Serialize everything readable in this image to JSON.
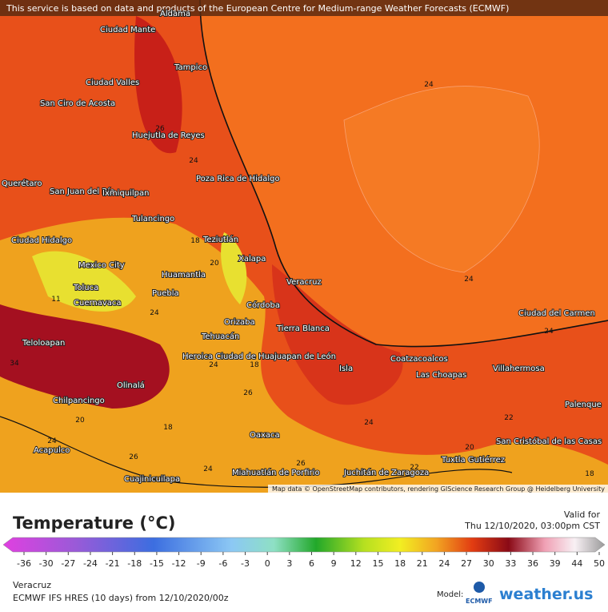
{
  "banner": "This service is based on data and products of the European Centre for Medium-range Weather Forecasts (ECMWF)",
  "attribution": "Map data © OpenStreetMap contributors, rendering GIScience Research Group @ Heidelberg University",
  "cities": [
    "Aldama",
    "Tampico",
    "Ciudad Mante",
    "Ciudad Valles",
    "San Ciro de Acosta",
    "Huejutla de Reyes",
    "Poza Rica de Hidalgo",
    "San Juan del Río",
    "Ixmiquilpan",
    "Querétaro",
    "Tulancingo",
    "Teziutlán",
    "Ciudad Hidalgo",
    "Xalapa",
    "Mexico City",
    "Huamantla",
    "Veracruz",
    "Toluca",
    "Cuernavaca",
    "Puebla",
    "Córdoba",
    "Orizaba",
    "Tierra Blanca",
    "Tehuacán",
    "Teloloapan",
    "Heroica Ciudad de Huajuapan de León",
    "Coatzacoalcos",
    "Isla",
    "Las Choapas",
    "Villahermosa",
    "Olinalá",
    "Chilpancingo",
    "Palenque",
    "Oaxaca",
    "San Cristóbal de las Casas",
    "Acapulco",
    "Tuxtla Gutiérrez",
    "Miahuatlán de Porfirio",
    "Juchitán de Zaragoza",
    "Cuajinicuilapa",
    "Ciudad del Carmen"
  ],
  "contour_labels": [
    24,
    24,
    24,
    26,
    24,
    18,
    20,
    24,
    18,
    24,
    34,
    11,
    24,
    22,
    20,
    26,
    22,
    18,
    18,
    20,
    24,
    26,
    24,
    26
  ],
  "legend": {
    "title": "Temperature (°C)",
    "ticks": [
      -36,
      -30,
      -27,
      -24,
      -21,
      -18,
      -15,
      -12,
      -9,
      -6,
      -3,
      0,
      3,
      6,
      9,
      12,
      15,
      18,
      21,
      24,
      27,
      30,
      33,
      36,
      39,
      44,
      50
    ]
  },
  "valid": {
    "label": "Valid for",
    "time": "Thu 12/10/2020, 03:00pm CST"
  },
  "location": "Veracruz",
  "model_run": "ECMWF IFS HRES (10 days) from 12/10/2020/00z",
  "model_label": "Model:",
  "model_logo": "ECMWF",
  "brand": "weather.us"
}
